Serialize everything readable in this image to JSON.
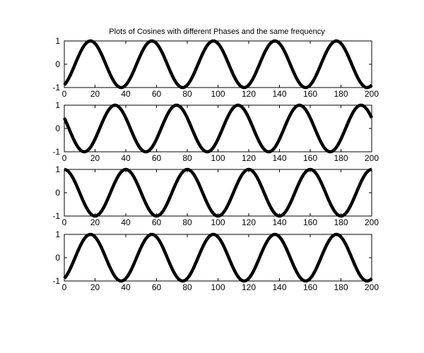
{
  "figure": {
    "title": "Plots of Cosines with different Phases and the same frequency"
  },
  "colors": {
    "background": "#ffffff",
    "line": "#000000",
    "axes": "#000000"
  },
  "chart_data": [
    {
      "type": "line",
      "title": "",
      "xlabel": "",
      "ylabel": "",
      "xlim": [
        0,
        200
      ],
      "ylim": [
        -1,
        1
      ],
      "xticks": [
        0,
        20,
        40,
        60,
        80,
        100,
        120,
        140,
        160,
        180,
        200
      ],
      "yticks": [
        -1,
        0,
        1
      ],
      "grid": false,
      "series": [
        {
          "function": "cos",
          "period": 40,
          "first_peak_x": 17,
          "amplitude": 1,
          "x_range": [
            0,
            200
          ]
        }
      ]
    },
    {
      "type": "line",
      "title": "",
      "xlabel": "",
      "ylabel": "",
      "xlim": [
        0,
        200
      ],
      "ylim": [
        -1,
        1
      ],
      "xticks": [
        0,
        20,
        40,
        60,
        80,
        100,
        120,
        140,
        160,
        180,
        200
      ],
      "yticks": [
        -1,
        0,
        1
      ],
      "grid": false,
      "series": [
        {
          "function": "cos",
          "period": 40,
          "first_peak_x": 33,
          "amplitude": 1,
          "x_range": [
            0,
            200
          ]
        }
      ]
    },
    {
      "type": "line",
      "title": "",
      "xlabel": "",
      "ylabel": "",
      "xlim": [
        0,
        200
      ],
      "ylim": [
        -1,
        1
      ],
      "xticks": [
        0,
        20,
        40,
        60,
        80,
        100,
        120,
        140,
        160,
        180,
        200
      ],
      "yticks": [
        -1,
        0,
        1
      ],
      "grid": false,
      "series": [
        {
          "function": "cos",
          "period": 40,
          "first_peak_x": 0,
          "amplitude": 1,
          "x_range": [
            0,
            200
          ]
        }
      ]
    },
    {
      "type": "line",
      "title": "",
      "xlabel": "",
      "ylabel": "",
      "xlim": [
        0,
        200
      ],
      "ylim": [
        -1,
        1
      ],
      "xticks": [
        0,
        20,
        40,
        60,
        80,
        100,
        120,
        140,
        160,
        180,
        200
      ],
      "yticks": [
        -1,
        0,
        1
      ],
      "grid": false,
      "series": [
        {
          "function": "cos",
          "period": 40,
          "first_peak_x": 17,
          "amplitude": 1,
          "x_range": [
            0,
            200
          ]
        }
      ]
    }
  ]
}
